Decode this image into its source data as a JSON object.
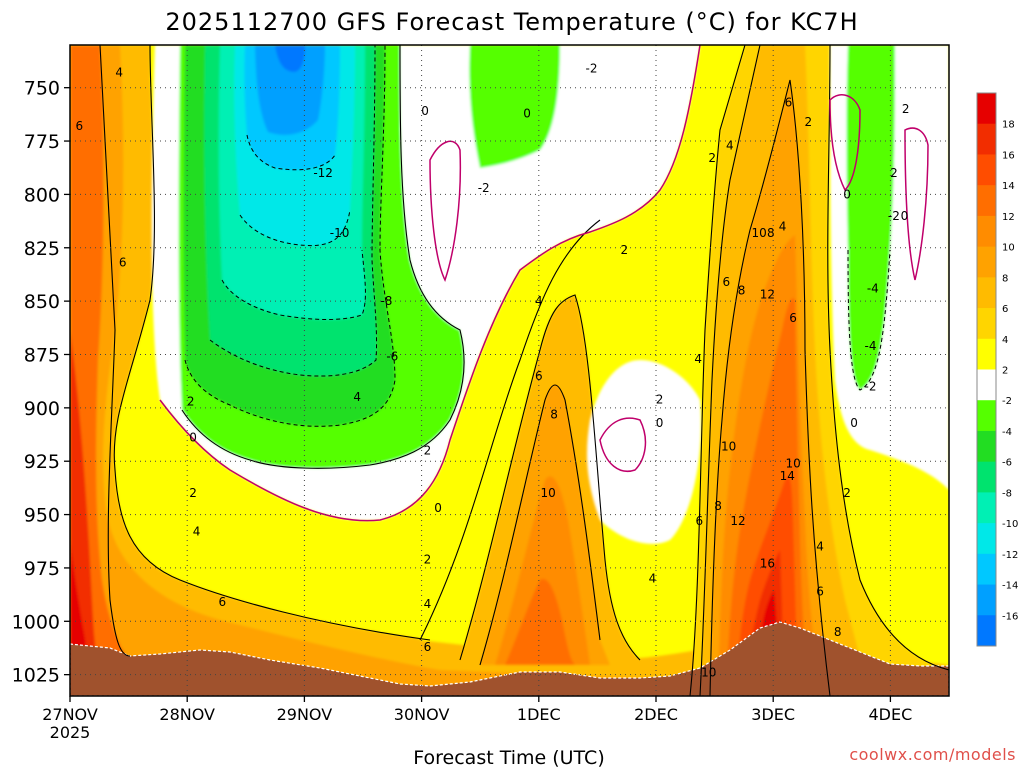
{
  "chart_data": {
    "type": "heatmap",
    "title": "2025112700 GFS Forecast Temperature (°C) for KC7H",
    "xlabel": "Forecast Time (UTC)",
    "ylabel": "",
    "watermark": "coolwx.com/models",
    "x_ticks": [
      "27NOV",
      "28NOV",
      "29NOV",
      "30NOV",
      "1DEC",
      "2DEC",
      "3DEC",
      "4DEC"
    ],
    "x_tick_sub": "2025",
    "x_range_days": [
      0,
      7.5
    ],
    "y_ticks": [
      750,
      775,
      800,
      825,
      850,
      875,
      900,
      925,
      950,
      975,
      1000,
      1025
    ],
    "ylim": [
      1035,
      730
    ],
    "colorbar": {
      "levels": [
        18,
        16,
        14,
        12,
        10,
        8,
        6,
        4,
        2,
        -2,
        -4,
        -6,
        -8,
        -10,
        -12,
        -14,
        -16
      ],
      "colors": [
        "#e60000",
        "#f22d00",
        "#ff4d00",
        "#ff6e00",
        "#ff8c00",
        "#ffa200",
        "#ffbb00",
        "#ffd500",
        "#ffff00",
        "#ffffff",
        "#55ff00",
        "#22dd22",
        "#00e36e",
        "#00f0b4",
        "#00e8e8",
        "#00c8ff",
        "#00a0ff",
        "#0078ff"
      ]
    },
    "contour_labels": [
      {
        "day": 0.42,
        "p": 743,
        "v": "4"
      },
      {
        "day": 0.08,
        "p": 768,
        "v": "6"
      },
      {
        "day": 0.45,
        "p": 832,
        "v": "6"
      },
      {
        "day": 1.03,
        "p": 897,
        "v": "2"
      },
      {
        "day": 1.05,
        "p": 914,
        "v": "0"
      },
      {
        "day": 1.05,
        "p": 940,
        "v": "2"
      },
      {
        "day": 1.08,
        "p": 958,
        "v": "4"
      },
      {
        "day": 1.3,
        "p": 991,
        "v": "6"
      },
      {
        "day": 2.16,
        "p": 790,
        "v": "-12"
      },
      {
        "day": 2.3,
        "p": 818,
        "v": "-10"
      },
      {
        "day": 2.7,
        "p": 850,
        "v": "-8"
      },
      {
        "day": 2.75,
        "p": 876,
        "v": "-6"
      },
      {
        "day": 2.45,
        "p": 895,
        "v": "4"
      },
      {
        "day": 3.03,
        "p": 761,
        "v": "0"
      },
      {
        "day": 3.53,
        "p": 797,
        "v": "-2"
      },
      {
        "day": 3.05,
        "p": 920,
        "v": "2"
      },
      {
        "day": 3.14,
        "p": 947,
        "v": "0"
      },
      {
        "day": 3.05,
        "p": 971,
        "v": "2"
      },
      {
        "day": 3.05,
        "p": 992,
        "v": "4"
      },
      {
        "day": 3.05,
        "p": 1012,
        "v": "6"
      },
      {
        "day": 4.45,
        "p": 741,
        "v": "-2"
      },
      {
        "day": 3.9,
        "p": 762,
        "v": "0"
      },
      {
        "day": 4.0,
        "p": 850,
        "v": "4"
      },
      {
        "day": 4.0,
        "p": 885,
        "v": "6"
      },
      {
        "day": 4.13,
        "p": 903,
        "v": "8"
      },
      {
        "day": 4.08,
        "p": 940,
        "v": "10"
      },
      {
        "day": 4.97,
        "p": 980,
        "v": "4"
      },
      {
        "day": 4.73,
        "p": 826,
        "v": "2"
      },
      {
        "day": 5.03,
        "p": 896,
        "v": "2"
      },
      {
        "day": 5.03,
        "p": 907,
        "v": "0"
      },
      {
        "day": 5.45,
        "p": 1024,
        "v": "10"
      },
      {
        "day": 5.48,
        "p": 783,
        "v": "2"
      },
      {
        "day": 5.63,
        "p": 777,
        "v": "4"
      },
      {
        "day": 5.36,
        "p": 877,
        "v": "4"
      },
      {
        "day": 5.6,
        "p": 841,
        "v": "6"
      },
      {
        "day": 5.73,
        "p": 845,
        "v": "8"
      },
      {
        "day": 5.62,
        "p": 918,
        "v": "10"
      },
      {
        "day": 5.53,
        "p": 946,
        "v": "8"
      },
      {
        "day": 5.37,
        "p": 953,
        "v": "6"
      },
      {
        "day": 5.7,
        "p": 953,
        "v": "12"
      },
      {
        "day": 5.95,
        "p": 973,
        "v": "16"
      },
      {
        "day": 5.88,
        "p": 818,
        "v": "10"
      },
      {
        "day": 5.98,
        "p": 818,
        "v": "8"
      },
      {
        "day": 6.08,
        "p": 815,
        "v": "4"
      },
      {
        "day": 6.13,
        "p": 757,
        "v": "6"
      },
      {
        "day": 5.95,
        "p": 847,
        "v": "12"
      },
      {
        "day": 6.17,
        "p": 858,
        "v": "6"
      },
      {
        "day": 6.17,
        "p": 926,
        "v": "10"
      },
      {
        "day": 6.12,
        "p": 932,
        "v": "14"
      },
      {
        "day": 6.3,
        "p": 766,
        "v": "2"
      },
      {
        "day": 6.63,
        "p": 800,
        "v": "0"
      },
      {
        "day": 6.69,
        "p": 907,
        "v": "0"
      },
      {
        "day": 6.63,
        "p": 940,
        "v": "2"
      },
      {
        "day": 6.4,
        "p": 965,
        "v": "4"
      },
      {
        "day": 6.4,
        "p": 986,
        "v": "6"
      },
      {
        "day": 6.55,
        "p": 1005,
        "v": "8"
      },
      {
        "day": 6.83,
        "p": 890,
        "v": "-2"
      },
      {
        "day": 6.83,
        "p": 871,
        "v": "-4"
      },
      {
        "day": 6.85,
        "p": 844,
        "v": "-4"
      },
      {
        "day": 7.03,
        "p": 810,
        "v": "-2"
      },
      {
        "day": 7.12,
        "p": 810,
        "v": "0"
      },
      {
        "day": 7.13,
        "p": 760,
        "v": "2"
      },
      {
        "day": 7.03,
        "p": 790,
        "v": "2"
      }
    ]
  }
}
